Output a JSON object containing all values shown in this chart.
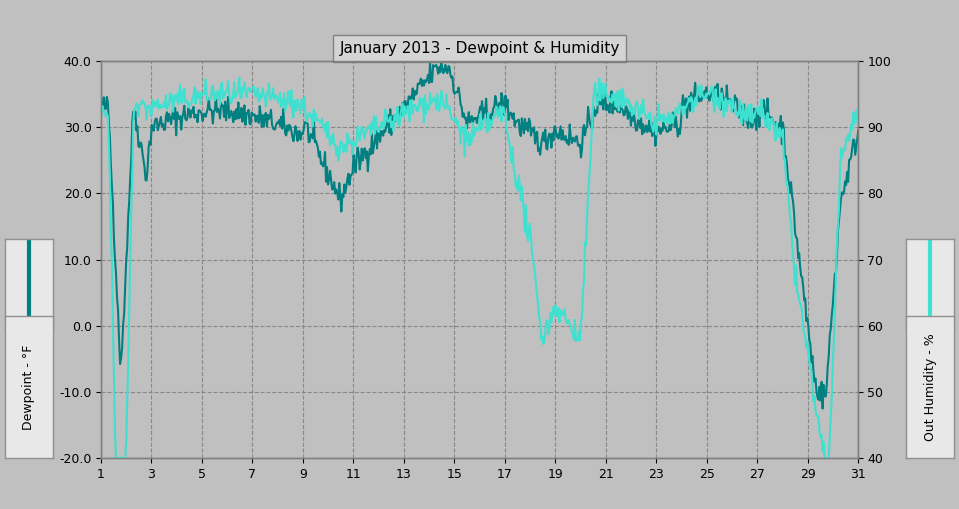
{
  "title": "January 2013 - Dewpoint & Humidity",
  "bg_color": "#c0c0c0",
  "plot_bg_color": "#c0c0c0",
  "left_ylabel": "Dewpoint - °F",
  "right_ylabel": "Out Humidity - %",
  "ylim_left": [
    -20.0,
    40.0
  ],
  "ylim_right": [
    40,
    100
  ],
  "xlim": [
    1,
    31
  ],
  "xticks": [
    1,
    3,
    5,
    7,
    9,
    11,
    13,
    15,
    17,
    19,
    21,
    23,
    25,
    27,
    29,
    31
  ],
  "yticks_left": [
    -20.0,
    -10.0,
    0.0,
    10.0,
    20.0,
    30.0,
    40.0
  ],
  "yticks_right": [
    40,
    50,
    60,
    70,
    80,
    90,
    100
  ],
  "dewpoint_color": "#008080",
  "humidity_color": "#40e0d0",
  "dewpoint_lw": 1.5,
  "humidity_lw": 1.5,
  "grid_color": "#888888",
  "grid_style": "--",
  "n_points": 744,
  "box_face": "#e8e8e8",
  "box_edge": "#909090"
}
